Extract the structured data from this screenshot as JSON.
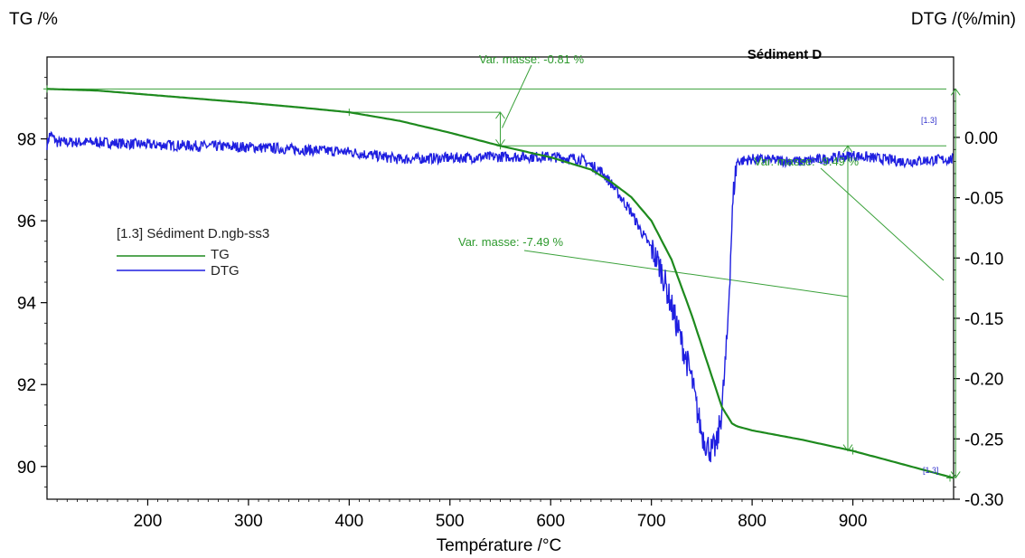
{
  "colors": {
    "tg": "#1e8a1e",
    "dtg": "#1f1fe0",
    "annotation": "#3aa13a",
    "axis": "#000000"
  },
  "chart_data": {
    "type": "line",
    "title": "Sédiment D",
    "xlabel": "Température /°C",
    "ylabel_left": "TG /%",
    "ylabel_right": "DTG /(%/min)",
    "xlim": [
      100,
      1000
    ],
    "ylim_left": [
      89.2,
      100.0
    ],
    "ylim_right": [
      -0.3,
      0.0667
    ],
    "x_ticks": [
      200,
      300,
      400,
      500,
      600,
      700,
      800,
      900
    ],
    "y_left_ticks": [
      "90",
      "92",
      "94",
      "96",
      "98"
    ],
    "y_left_tick_values": [
      90,
      92,
      94,
      96,
      98
    ],
    "y_right_ticks": [
      "0.00",
      "-0.05",
      "-0.10",
      "-0.15",
      "-0.20",
      "-0.25",
      "-0.30"
    ],
    "y_right_tick_values": [
      0.0,
      -0.05,
      -0.1,
      -0.15,
      -0.2,
      -0.25,
      -0.3
    ],
    "legend": {
      "header": "[1.3] Sédiment D.ngb-ss3",
      "entries": [
        "TG",
        "DTG"
      ]
    },
    "series": [
      {
        "name": "TG",
        "axis": "left",
        "x": [
          100,
          150,
          200,
          250,
          300,
          350,
          400,
          450,
          500,
          550,
          600,
          640,
          660,
          680,
          700,
          720,
          740,
          760,
          770,
          780,
          785,
          800,
          850,
          900,
          950,
          1000
        ],
        "y": [
          99.22,
          99.18,
          99.08,
          98.98,
          98.88,
          98.77,
          98.65,
          98.44,
          98.15,
          97.83,
          97.55,
          97.25,
          96.95,
          96.58,
          96.0,
          95.05,
          93.7,
          92.2,
          91.45,
          91.05,
          90.98,
          90.88,
          90.65,
          90.38,
          90.05,
          89.72
        ]
      },
      {
        "name": "DTG",
        "axis": "right",
        "x": [
          100,
          103,
          110,
          150,
          200,
          300,
          350,
          400,
          450,
          500,
          550,
          600,
          630,
          650,
          660,
          670,
          680,
          690,
          700,
          710,
          720,
          730,
          740,
          745,
          750,
          755,
          760,
          765,
          770,
          775,
          778,
          780,
          782,
          785,
          800,
          850,
          900,
          950,
          1000
        ],
        "y": [
          -0.006,
          0.003,
          -0.004,
          -0.004,
          -0.006,
          -0.008,
          -0.01,
          -0.012,
          -0.018,
          -0.017,
          -0.016,
          -0.016,
          -0.018,
          -0.028,
          -0.038,
          -0.05,
          -0.062,
          -0.078,
          -0.092,
          -0.11,
          -0.14,
          -0.17,
          -0.2,
          -0.225,
          -0.245,
          -0.255,
          -0.26,
          -0.255,
          -0.225,
          -0.17,
          -0.11,
          -0.07,
          -0.04,
          -0.02,
          -0.018,
          -0.02,
          -0.015,
          -0.02,
          -0.018
        ]
      }
    ],
    "annotations": [
      {
        "text": "Var. masse: -0.81 %",
        "x_range": [
          400,
          550
        ],
        "value": -0.81
      },
      {
        "text": "Var. masse: -7.49 %",
        "x_range": [
          550,
          900
        ],
        "value": -7.49
      },
      {
        "text": "Var. masse: -9.49 %",
        "x_range": [
          100,
          1000
        ],
        "value": -9.49
      }
    ],
    "run_tags": [
      "[1.3]",
      "[1.3]"
    ]
  }
}
